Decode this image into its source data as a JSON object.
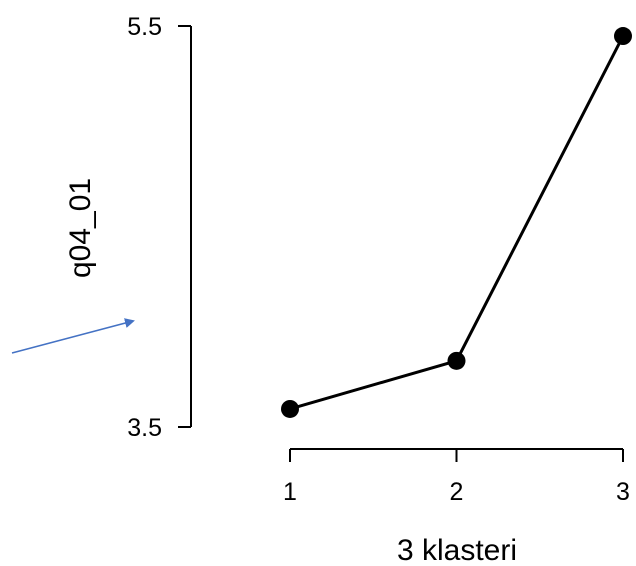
{
  "chart_data": {
    "type": "line",
    "x": [
      1,
      2,
      3
    ],
    "categories": [
      "1",
      "2",
      "3"
    ],
    "values": [
      3.59,
      3.83,
      5.45
    ],
    "ylim": [
      3.5,
      5.5
    ],
    "y_ticks": [
      "3.5",
      "5.5"
    ],
    "xlabel": "3 klasteri",
    "ylabel": "q04_01",
    "grid": false,
    "annotation": {
      "type": "arrow",
      "color": "#4472c4"
    },
    "line_color": "#000000",
    "marker_color": "#000000"
  }
}
